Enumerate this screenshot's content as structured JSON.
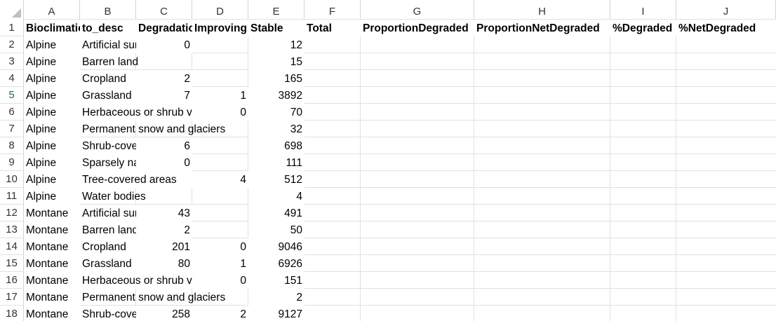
{
  "sheet": {
    "columns": [
      "A",
      "B",
      "C",
      "D",
      "E",
      "F",
      "G",
      "H",
      "I",
      "J"
    ],
    "rows": [
      "1",
      "2",
      "3",
      "4",
      "5",
      "6",
      "7",
      "8",
      "9",
      "10",
      "11",
      "12",
      "13",
      "14",
      "15",
      "16",
      "17",
      "18"
    ],
    "selected_row": "5",
    "header": {
      "A": "Bioclimatic",
      "B": "to_desc",
      "C": "Degradation",
      "D": "Improving",
      "E": "Stable",
      "F": "Total",
      "G": "ProportionDegraded",
      "H": "ProportionNetDegraded",
      "I": "%Degraded",
      "J": "%NetDegraded"
    },
    "data": [
      {
        "A": "Alpine",
        "B": "Artificial surfaces",
        "C": "0",
        "D": "",
        "E": "12"
      },
      {
        "A": "Alpine",
        "B": "Barren land",
        "C": "",
        "D": "",
        "E": "15"
      },
      {
        "A": "Alpine",
        "B": "Cropland",
        "C": "2",
        "D": "",
        "E": "165"
      },
      {
        "A": "Alpine",
        "B": "Grassland",
        "C": "7",
        "D": "1",
        "E": "3892"
      },
      {
        "A": "Alpine",
        "B": "Herbaceous or shrub vegetation",
        "C": "",
        "D": "0",
        "E": "70"
      },
      {
        "A": "Alpine",
        "B": "Permanent snow and glaciers",
        "C": "",
        "D": "",
        "E": "32"
      },
      {
        "A": "Alpine",
        "B": "Shrub-covered areas",
        "C": "6",
        "D": "",
        "E": "698"
      },
      {
        "A": "Alpine",
        "B": "Sparsely natural",
        "C": "0",
        "D": "",
        "E": "111"
      },
      {
        "A": "Alpine",
        "B": "Tree-covered areas",
        "C": "",
        "D": "4",
        "E": "512"
      },
      {
        "A": "Alpine",
        "B": "Water bodies",
        "C": "",
        "D": "",
        "E": "4"
      },
      {
        "A": "Montane",
        "B": "Artificial surfaces",
        "C": "43",
        "D": "",
        "E": "491"
      },
      {
        "A": "Montane",
        "B": "Barren land",
        "C": "2",
        "D": "",
        "E": "50"
      },
      {
        "A": "Montane",
        "B": "Cropland",
        "C": "201",
        "D": "0",
        "E": "9046"
      },
      {
        "A": "Montane",
        "B": "Grassland",
        "C": "80",
        "D": "1",
        "E": "6926"
      },
      {
        "A": "Montane",
        "B": "Herbaceous or shrub vegetation",
        "C": "",
        "D": "0",
        "E": "151"
      },
      {
        "A": "Montane",
        "B": "Permanent snow and glaciers",
        "C": "",
        "D": "",
        "E": "2"
      },
      {
        "A": "Montane",
        "B": "Shrub-covered areas",
        "C": "258",
        "D": "2",
        "E": "9127"
      }
    ]
  }
}
